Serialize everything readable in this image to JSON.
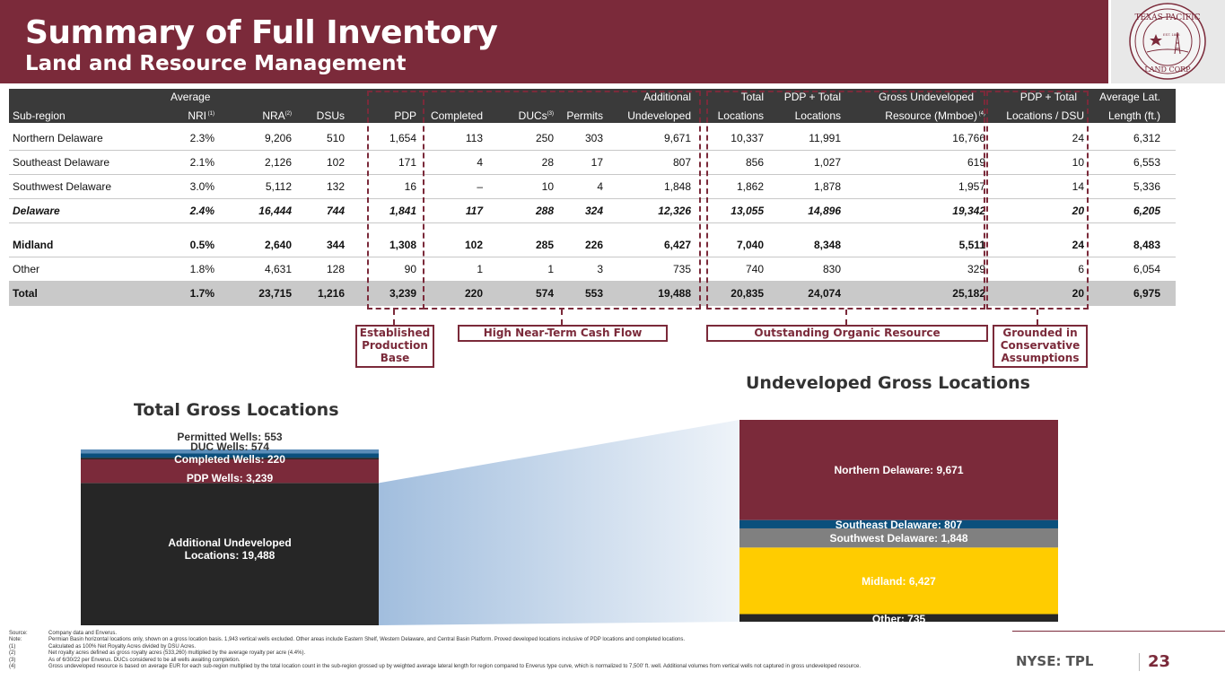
{
  "header": {
    "title": "Summary of Full Inventory",
    "subtitle": "Land and Resource Management",
    "logo": {
      "top_text": "TEXAS PACIFIC",
      "bottom_text": "LAND CORP",
      "est": "EST. 1888"
    }
  },
  "table": {
    "columns_top": [
      "",
      "Average",
      "",
      "",
      "",
      "",
      "",
      "",
      "Additional",
      "Total",
      "PDP + Total",
      "Gross Undeveloped",
      "PDP + Total",
      "Average Lat."
    ],
    "columns": [
      "Sub-region",
      "NRI",
      "NRA",
      "DSUs",
      "PDP",
      "Completed",
      "DUCs",
      "Permits",
      "Undeveloped",
      "Locations",
      "Locations",
      "Resource (Mmboe)",
      "Locations / DSU",
      "Length (ft.)"
    ],
    "superscripts": {
      "nri": "(1)",
      "nra": "(2)",
      "ducs": "(3)",
      "resource": "(4)"
    },
    "rows": [
      [
        "Northern Delaware",
        "2.3%",
        "9,206",
        "510",
        "1,654",
        "113",
        "250",
        "303",
        "9,671",
        "10,337",
        "11,991",
        "16,766",
        "24",
        "6,312"
      ],
      [
        "Southeast Delaware",
        "2.1%",
        "2,126",
        "102",
        "171",
        "4",
        "28",
        "17",
        "807",
        "856",
        "1,027",
        "619",
        "10",
        "6,553"
      ],
      [
        "Southwest Delaware",
        "3.0%",
        "5,112",
        "132",
        "16",
        "–",
        "10",
        "4",
        "1,848",
        "1,862",
        "1,878",
        "1,957",
        "14",
        "5,336"
      ],
      [
        "Delaware",
        "2.4%",
        "16,444",
        "744",
        "1,841",
        "117",
        "288",
        "324",
        "12,326",
        "13,055",
        "14,896",
        "19,342",
        "20",
        "6,205"
      ],
      [
        "Midland",
        "0.5%",
        "2,640",
        "344",
        "1,308",
        "102",
        "285",
        "226",
        "6,427",
        "7,040",
        "8,348",
        "5,511",
        "24",
        "8,483"
      ],
      [
        "Other",
        "1.8%",
        "4,631",
        "128",
        "90",
        "1",
        "1",
        "3",
        "735",
        "740",
        "830",
        "329",
        "6",
        "6,054"
      ],
      [
        "Total",
        "1.7%",
        "23,715",
        "1,216",
        "3,239",
        "220",
        "574",
        "553",
        "19,488",
        "20,835",
        "24,074",
        "25,182",
        "20",
        "6,975"
      ]
    ]
  },
  "callouts": {
    "established": [
      "Established",
      "Production",
      "Base"
    ],
    "cash_flow": "High Near-Term Cash Flow",
    "organic": "Outstanding Organic Resource",
    "grounded": [
      "Grounded in",
      "Conservative",
      "Assumptions"
    ]
  },
  "charts": {
    "total_title": "Total Gross Locations",
    "undeveloped_title": "Undeveloped Gross Locations",
    "total_labels": {
      "permitted": "Permitted Wells:  553",
      "duc": "DUC Wells:  574",
      "completed": "Completed Wells:  220",
      "pdp": "PDP Wells:  3,239",
      "additional_1": "Additional Undeveloped",
      "additional_2": "Locations:  19,488"
    },
    "undeveloped_labels": {
      "northern": "Northern Delaware:  9,671",
      "southeast": "Southeast Delaware:  807",
      "southwest": "Southwest Delaware:  1,848",
      "midland": "Midland:  6,427",
      "other": "Other:  735"
    },
    "colors": {
      "maroon": "#7b2a3a",
      "dark": "#262626",
      "blue": "#0b4f7c",
      "gray": "#808080",
      "yellow": "#ffcc00",
      "light_blue": "#2f6eb5"
    }
  },
  "chart_data": [
    {
      "type": "bar",
      "categories": [
        "Additional Undeveloped Locations",
        "PDP Wells",
        "Completed Wells",
        "DUC Wells",
        "Permitted Wells"
      ],
      "values": [
        19488,
        3239,
        220,
        574,
        553
      ],
      "title": "Total Gross Locations",
      "stacked": true
    },
    {
      "type": "bar",
      "categories": [
        "Other",
        "Midland",
        "Southwest Delaware",
        "Southeast Delaware",
        "Northern Delaware"
      ],
      "values": [
        735,
        6427,
        1848,
        807,
        9671
      ],
      "title": "Undeveloped Gross Locations",
      "stacked": true
    }
  ],
  "footnotes": [
    [
      "Source:",
      "Company data and Enverus."
    ],
    [
      "Note:",
      "Permian Basin horizontal locations only, shown on a gross location basis. 1,943 vertical wells excluded. Other areas include Eastern Shelf, Western Delaware, and Central Basin Platform. Proved developed locations inclusive of PDP locations and completed locations."
    ],
    [
      "(1)",
      "Calculated as 100% Net Royalty Acres divided by DSU Acres."
    ],
    [
      "(2)",
      "Net royalty acres defined as gross royalty acres (533,260) multiplied by the average royalty per acre (4.4%)."
    ],
    [
      "(3)",
      "As of 6/30/22 per Enverus. DUCs considered to be all wells awaiting completion."
    ],
    [
      "(4)",
      "Gross undeveloped resource is based on average EUR for each sub-region multiplied by the total location count in the sub-region grossed up by weighted average lateral length for region compared to Enverus type curve, which is normalized to 7,500' ft. well. Additional volumes from vertical wells not captured in gross undeveloped resource."
    ]
  ],
  "footer": {
    "ticker": "NYSE: TPL",
    "page": "23"
  }
}
